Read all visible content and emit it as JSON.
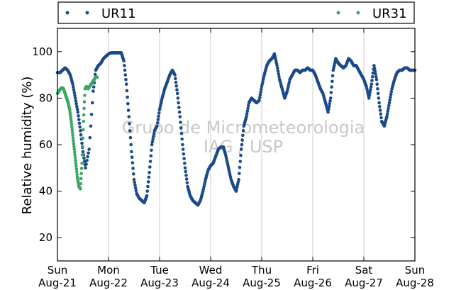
{
  "chart_data": {
    "type": "scatter",
    "ylabel": "Relative humidity (%)",
    "xlabel": "",
    "title": "",
    "ylim": [
      10,
      110
    ],
    "yticks": [
      20,
      40,
      60,
      80,
      100
    ],
    "x_unit": "days since Sun Aug-21 00:00",
    "xlim": [
      0,
      7
    ],
    "xticks": [
      {
        "day": "Sun",
        "date": "Aug-21"
      },
      {
        "day": "Mon",
        "date": "Aug-22"
      },
      {
        "day": "Tue",
        "date": "Aug-23"
      },
      {
        "day": "Wed",
        "date": "Aug-24"
      },
      {
        "day": "Thu",
        "date": "Aug-25"
      },
      {
        "day": "Fri",
        "date": "Aug-26"
      },
      {
        "day": "Sat",
        "date": "Aug-27"
      },
      {
        "day": "Sun",
        "date": "Aug-28"
      }
    ],
    "grid": "vertical",
    "legend": "top",
    "watermark": [
      "Grupo de Micrometeorologia",
      "IAG / USP"
    ],
    "series": [
      {
        "name": "UR11",
        "color": "#1a4a8a",
        "points": [
          [
            0.0,
            91
          ],
          [
            0.05,
            91
          ],
          [
            0.1,
            92
          ],
          [
            0.15,
            93
          ],
          [
            0.2,
            92
          ],
          [
            0.25,
            90
          ],
          [
            0.3,
            86
          ],
          [
            0.35,
            80
          ],
          [
            0.4,
            74
          ],
          [
            0.45,
            66
          ],
          [
            0.5,
            57
          ],
          [
            0.55,
            50
          ],
          [
            0.62,
            58
          ],
          [
            0.7,
            83
          ],
          [
            0.75,
            92
          ],
          [
            0.8,
            94
          ],
          [
            0.85,
            95
          ],
          [
            0.9,
            97
          ],
          [
            0.95,
            98
          ],
          [
            1.0,
            99
          ],
          [
            1.05,
            99.5
          ],
          [
            1.1,
            99.5
          ],
          [
            1.15,
            99.5
          ],
          [
            1.2,
            99.5
          ],
          [
            1.25,
            99.5
          ],
          [
            1.3,
            96
          ],
          [
            1.35,
            86
          ],
          [
            1.4,
            72
          ],
          [
            1.45,
            57
          ],
          [
            1.5,
            45
          ],
          [
            1.55,
            39
          ],
          [
            1.6,
            37
          ],
          [
            1.65,
            36
          ],
          [
            1.7,
            35
          ],
          [
            1.75,
            38
          ],
          [
            1.8,
            48
          ],
          [
            1.85,
            60
          ],
          [
            1.9,
            66
          ],
          [
            1.95,
            68
          ],
          [
            2.0,
            75
          ],
          [
            2.05,
            80
          ],
          [
            2.1,
            84
          ],
          [
            2.15,
            87
          ],
          [
            2.2,
            90
          ],
          [
            2.25,
            92
          ],
          [
            2.3,
            90
          ],
          [
            2.35,
            82
          ],
          [
            2.4,
            72
          ],
          [
            2.45,
            60
          ],
          [
            2.5,
            50
          ],
          [
            2.55,
            42
          ],
          [
            2.6,
            38
          ],
          [
            2.65,
            36
          ],
          [
            2.7,
            35
          ],
          [
            2.75,
            34
          ],
          [
            2.8,
            36
          ],
          [
            2.85,
            40
          ],
          [
            2.9,
            45
          ],
          [
            2.95,
            49
          ],
          [
            3.0,
            51
          ],
          [
            3.05,
            52
          ],
          [
            3.1,
            55
          ],
          [
            3.15,
            58
          ],
          [
            3.2,
            59
          ],
          [
            3.25,
            59
          ],
          [
            3.3,
            55
          ],
          [
            3.35,
            50
          ],
          [
            3.4,
            45
          ],
          [
            3.45,
            42
          ],
          [
            3.5,
            40
          ],
          [
            3.55,
            45
          ],
          [
            3.6,
            58
          ],
          [
            3.65,
            68
          ],
          [
            3.7,
            72
          ],
          [
            3.75,
            78
          ],
          [
            3.8,
            80
          ],
          [
            3.85,
            79
          ],
          [
            3.9,
            78
          ],
          [
            3.95,
            79
          ],
          [
            4.0,
            85
          ],
          [
            4.05,
            90
          ],
          [
            4.1,
            94
          ],
          [
            4.15,
            96
          ],
          [
            4.2,
            97
          ],
          [
            4.25,
            99
          ],
          [
            4.3,
            94
          ],
          [
            4.35,
            88
          ],
          [
            4.4,
            84
          ],
          [
            4.45,
            80
          ],
          [
            4.5,
            83
          ],
          [
            4.55,
            88
          ],
          [
            4.6,
            90
          ],
          [
            4.65,
            92
          ],
          [
            4.7,
            92
          ],
          [
            4.75,
            91
          ],
          [
            4.8,
            92
          ],
          [
            4.85,
            92
          ],
          [
            4.9,
            93
          ],
          [
            4.95,
            92
          ],
          [
            5.0,
            92
          ],
          [
            5.05,
            90
          ],
          [
            5.1,
            87
          ],
          [
            5.15,
            84
          ],
          [
            5.2,
            82
          ],
          [
            5.25,
            78
          ],
          [
            5.3,
            74
          ],
          [
            5.35,
            80
          ],
          [
            5.4,
            92
          ],
          [
            5.45,
            97
          ],
          [
            5.5,
            95
          ],
          [
            5.55,
            94
          ],
          [
            5.6,
            93
          ],
          [
            5.65,
            94
          ],
          [
            5.7,
            97
          ],
          [
            5.75,
            96
          ],
          [
            5.8,
            94
          ],
          [
            5.85,
            94
          ],
          [
            5.9,
            92
          ],
          [
            5.95,
            90
          ],
          [
            6.0,
            88
          ],
          [
            6.05,
            85
          ],
          [
            6.1,
            80
          ],
          [
            6.15,
            86
          ],
          [
            6.2,
            94
          ],
          [
            6.25,
            88
          ],
          [
            6.3,
            78
          ],
          [
            6.35,
            70
          ],
          [
            6.4,
            68
          ],
          [
            6.45,
            72
          ],
          [
            6.5,
            78
          ],
          [
            6.55,
            84
          ],
          [
            6.6,
            88
          ],
          [
            6.65,
            91
          ],
          [
            6.7,
            92
          ],
          [
            6.75,
            92
          ],
          [
            6.8,
            93
          ],
          [
            6.85,
            93
          ],
          [
            6.9,
            92
          ],
          [
            6.95,
            92
          ],
          [
            7.0,
            92
          ]
        ]
      },
      {
        "name": "UR31",
        "color": "#3aa864",
        "points": [
          [
            0.0,
            82
          ],
          [
            0.03,
            83
          ],
          [
            0.06,
            84
          ],
          [
            0.09,
            84.5
          ],
          [
            0.12,
            84
          ],
          [
            0.15,
            82
          ],
          [
            0.18,
            80
          ],
          [
            0.21,
            78
          ],
          [
            0.24,
            75
          ],
          [
            0.27,
            70
          ],
          [
            0.3,
            64
          ],
          [
            0.33,
            58
          ],
          [
            0.36,
            52
          ],
          [
            0.39,
            46
          ],
          [
            0.42,
            42
          ],
          [
            0.45,
            41
          ],
          [
            0.48,
            52
          ],
          [
            0.51,
            70
          ],
          [
            0.54,
            84
          ],
          [
            0.57,
            85
          ],
          [
            0.6,
            84
          ],
          [
            0.63,
            85
          ],
          [
            0.66,
            86
          ],
          [
            0.69,
            87
          ],
          [
            0.72,
            88
          ],
          [
            0.75,
            89
          ],
          [
            0.78,
            89
          ]
        ]
      }
    ]
  }
}
